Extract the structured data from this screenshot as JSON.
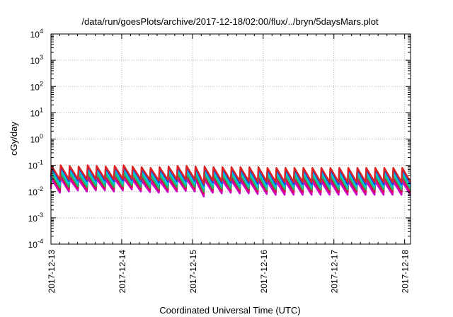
{
  "chart_data": {
    "type": "line",
    "title": "/data/run/goesPlots/archive/2017-12-18/02:00/flux/../bryn/5daysMars.plot",
    "xlabel": "Coordinated Universal Time (UTC)",
    "ylabel": "cGy/day",
    "y_scale": "log",
    "ylim": [
      0.0001,
      10000
    ],
    "y_tick_labels": [
      {
        "base": "10",
        "exp": "4"
      },
      {
        "base": "10",
        "exp": "3"
      },
      {
        "base": "10",
        "exp": "2"
      },
      {
        "base": "10",
        "exp": "1"
      },
      {
        "base": "10",
        "exp": "0"
      },
      {
        "base": "10",
        "exp": "-1"
      },
      {
        "base": "10",
        "exp": "-2"
      },
      {
        "base": "10",
        "exp": "-3"
      },
      {
        "base": "10",
        "exp": "-4"
      }
    ],
    "xlim": [
      "2017-12-13",
      "2017-12-18 02:00"
    ],
    "x_tick_labels": [
      "2017-12-13",
      "2017-12-14",
      "2017-12-15",
      "2017-12-16",
      "2017-12-17",
      "2017-12-18"
    ],
    "grid": true,
    "legend": "none",
    "series": [
      {
        "color": "#cc00cc",
        "peaks": [
          0.03,
          0.032,
          0.03,
          0.028,
          0.032,
          0.03,
          0.028,
          0.03,
          0.032,
          0.028,
          0.026,
          0.024,
          0.026,
          0.028,
          0.03,
          0.03,
          0.028,
          0.028,
          0.026,
          0.026,
          0.026,
          0.026,
          0.026,
          0.026,
          0.024,
          0.024,
          0.024,
          0.024,
          0.024,
          0.024,
          0.024,
          0.024,
          0.024,
          0.024,
          0.024,
          0.024,
          0.024,
          0.024,
          0.024,
          0.024
        ],
        "troughs": [
          0.009,
          0.01,
          0.011,
          0.01,
          0.011,
          0.011,
          0.01,
          0.011,
          0.012,
          0.01,
          0.0095,
          0.009,
          0.0095,
          0.01,
          0.0105,
          0.01,
          0.0065,
          0.009,
          0.0085,
          0.009,
          0.0085,
          0.0085,
          0.008,
          0.008,
          0.0075,
          0.0075,
          0.0075,
          0.0075,
          0.0075,
          0.0075,
          0.0075,
          0.0075,
          0.0075,
          0.0075,
          0.0075,
          0.0075,
          0.0075,
          0.0075,
          0.0075,
          0.0075
        ]
      },
      {
        "color": "#dd0055",
        "peaks": [
          0.038,
          0.04,
          0.038,
          0.036,
          0.04,
          0.038,
          0.036,
          0.038,
          0.04,
          0.036,
          0.034,
          0.032,
          0.034,
          0.036,
          0.038,
          0.038,
          0.036,
          0.036,
          0.034,
          0.034,
          0.034,
          0.034,
          0.034,
          0.034,
          0.032,
          0.032,
          0.032,
          0.032,
          0.032,
          0.032,
          0.032,
          0.032,
          0.032,
          0.032,
          0.032,
          0.032,
          0.032,
          0.032,
          0.032,
          0.032
        ],
        "troughs": [
          0.011,
          0.012,
          0.013,
          0.012,
          0.013,
          0.013,
          0.012,
          0.013,
          0.014,
          0.012,
          0.0115,
          0.011,
          0.0115,
          0.012,
          0.0125,
          0.012,
          0.008,
          0.011,
          0.0105,
          0.011,
          0.0105,
          0.0105,
          0.01,
          0.01,
          0.0095,
          0.0095,
          0.0095,
          0.0095,
          0.0095,
          0.0095,
          0.0095,
          0.0095,
          0.0095,
          0.0095,
          0.0095,
          0.0095,
          0.0095,
          0.0095,
          0.0095,
          0.0095
        ]
      },
      {
        "color": "#22bb55",
        "peaks": [
          0.05,
          0.052,
          0.05,
          0.048,
          0.052,
          0.05,
          0.048,
          0.05,
          0.052,
          0.048,
          0.045,
          0.043,
          0.045,
          0.048,
          0.05,
          0.05,
          0.048,
          0.048,
          0.045,
          0.045,
          0.045,
          0.045,
          0.045,
          0.045,
          0.043,
          0.043,
          0.043,
          0.043,
          0.043,
          0.043,
          0.043,
          0.043,
          0.043,
          0.043,
          0.043,
          0.043,
          0.043,
          0.043,
          0.043,
          0.043
        ],
        "troughs": [
          0.014,
          0.015,
          0.016,
          0.015,
          0.016,
          0.016,
          0.015,
          0.016,
          0.017,
          0.015,
          0.014,
          0.013,
          0.014,
          0.015,
          0.015,
          0.015,
          0.01,
          0.013,
          0.013,
          0.013,
          0.013,
          0.013,
          0.012,
          0.012,
          0.012,
          0.012,
          0.012,
          0.012,
          0.012,
          0.012,
          0.012,
          0.012,
          0.012,
          0.012,
          0.012,
          0.012,
          0.012,
          0.012,
          0.012,
          0.012
        ]
      },
      {
        "color": "#00c8dd",
        "peaks": [
          0.065,
          0.068,
          0.065,
          0.062,
          0.068,
          0.065,
          0.062,
          0.065,
          0.068,
          0.062,
          0.058,
          0.055,
          0.058,
          0.062,
          0.065,
          0.065,
          0.062,
          0.062,
          0.058,
          0.058,
          0.058,
          0.058,
          0.058,
          0.058,
          0.055,
          0.055,
          0.055,
          0.055,
          0.055,
          0.055,
          0.055,
          0.055,
          0.055,
          0.055,
          0.055,
          0.055,
          0.055,
          0.055,
          0.055,
          0.055
        ],
        "troughs": [
          0.018,
          0.019,
          0.02,
          0.019,
          0.02,
          0.02,
          0.019,
          0.02,
          0.021,
          0.019,
          0.018,
          0.017,
          0.018,
          0.019,
          0.019,
          0.019,
          0.013,
          0.017,
          0.016,
          0.017,
          0.016,
          0.016,
          0.015,
          0.015,
          0.015,
          0.015,
          0.015,
          0.015,
          0.015,
          0.015,
          0.015,
          0.015,
          0.015,
          0.015,
          0.015,
          0.015,
          0.015,
          0.015,
          0.015,
          0.015
        ]
      },
      {
        "color": "#2244dd",
        "peaks": [
          0.085,
          0.09,
          0.085,
          0.08,
          0.09,
          0.085,
          0.08,
          0.085,
          0.09,
          0.08,
          0.075,
          0.072,
          0.075,
          0.08,
          0.085,
          0.085,
          0.08,
          0.08,
          0.075,
          0.075,
          0.075,
          0.075,
          0.075,
          0.075,
          0.072,
          0.072,
          0.072,
          0.072,
          0.072,
          0.072,
          0.072,
          0.072,
          0.072,
          0.072,
          0.072,
          0.072,
          0.072,
          0.072,
          0.072,
          0.072
        ],
        "troughs": [
          0.024,
          0.025,
          0.026,
          0.025,
          0.026,
          0.026,
          0.025,
          0.026,
          0.027,
          0.025,
          0.024,
          0.022,
          0.024,
          0.025,
          0.025,
          0.025,
          0.017,
          0.022,
          0.021,
          0.022,
          0.021,
          0.021,
          0.02,
          0.02,
          0.019,
          0.019,
          0.019,
          0.019,
          0.019,
          0.019,
          0.019,
          0.019,
          0.019,
          0.019,
          0.019,
          0.019,
          0.019,
          0.019,
          0.019,
          0.019
        ]
      },
      {
        "color": "#dd2222",
        "peaks": [
          0.095,
          0.1,
          0.095,
          0.09,
          0.1,
          0.095,
          0.09,
          0.095,
          0.1,
          0.09,
          0.085,
          0.08,
          0.085,
          0.09,
          0.095,
          0.095,
          0.09,
          0.09,
          0.085,
          0.085,
          0.085,
          0.085,
          0.085,
          0.085,
          0.08,
          0.08,
          0.08,
          0.08,
          0.08,
          0.08,
          0.08,
          0.08,
          0.08,
          0.08,
          0.08,
          0.08,
          0.08,
          0.08,
          0.08,
          0.08
        ],
        "troughs": [
          0.028,
          0.029,
          0.03,
          0.029,
          0.03,
          0.03,
          0.029,
          0.03,
          0.031,
          0.029,
          0.028,
          0.026,
          0.028,
          0.029,
          0.029,
          0.029,
          0.02,
          0.026,
          0.025,
          0.026,
          0.025,
          0.025,
          0.024,
          0.024,
          0.023,
          0.023,
          0.023,
          0.023,
          0.023,
          0.023,
          0.023,
          0.023,
          0.023,
          0.023,
          0.023,
          0.023,
          0.023,
          0.023,
          0.023,
          0.023
        ]
      }
    ]
  }
}
